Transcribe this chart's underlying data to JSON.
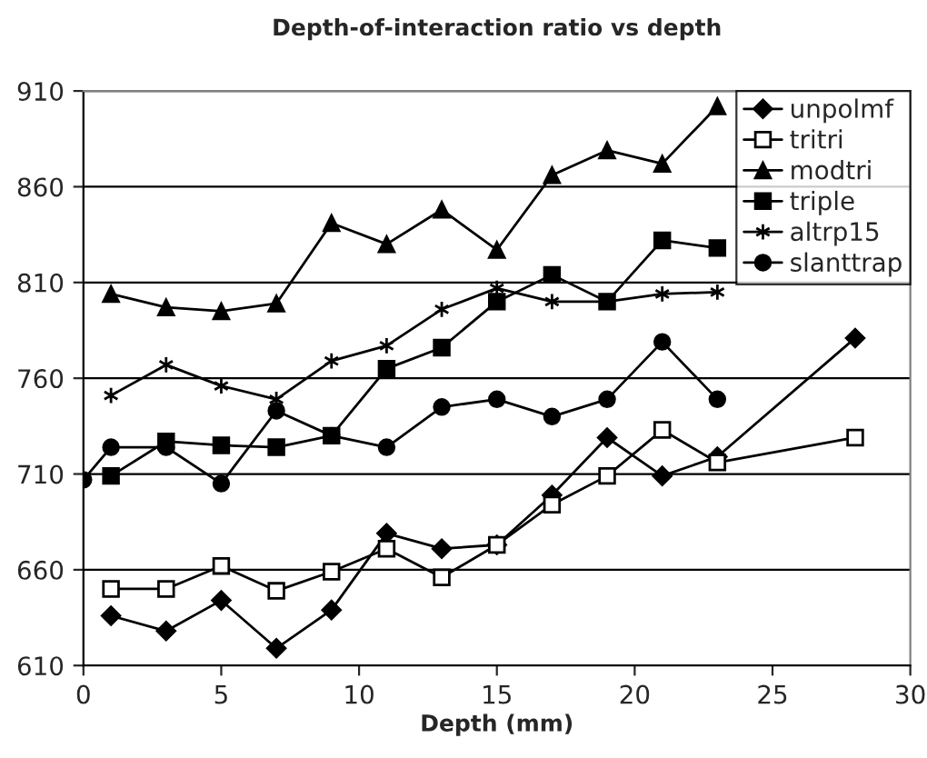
{
  "chart_data": {
    "type": "line",
    "title": "Depth-of-interaction ratio vs depth",
    "xlabel": "Depth (mm)",
    "xlim": [
      0,
      30
    ],
    "xticks": [
      0,
      5,
      10,
      15,
      20,
      25,
      30
    ],
    "ylim": [
      610,
      910
    ],
    "yticks": [
      610,
      660,
      710,
      760,
      810,
      860,
      910
    ],
    "grid": "y",
    "legend": "top right",
    "line_style": "solid",
    "series": [
      {
        "name": "unpolmf",
        "color": "#000000",
        "marker": "diamond",
        "x": [
          1,
          3,
          5,
          7,
          9,
          11,
          13,
          15,
          17,
          19,
          21,
          23,
          28
        ],
        "values": [
          636,
          628,
          644,
          619,
          639,
          679,
          671,
          673,
          699,
          729,
          709,
          719,
          781
        ]
      },
      {
        "name": "tritri",
        "color": "#000000",
        "marker": "square",
        "x": [
          1,
          3,
          5,
          7,
          9,
          11,
          13,
          15,
          17,
          19,
          21,
          23,
          28
        ],
        "values": [
          650,
          650,
          662,
          649,
          659,
          671,
          656,
          673,
          694,
          709,
          733,
          716,
          729
        ]
      },
      {
        "name": "modtri",
        "color": "#000000",
        "marker": "triangle",
        "x": [
          1,
          3,
          5,
          7,
          9,
          11,
          13,
          15,
          17,
          19,
          21,
          23
        ],
        "values": [
          804,
          797,
          795,
          799,
          841,
          830,
          848,
          827,
          866,
          879,
          872,
          902
        ]
      },
      {
        "name": "triple",
        "color": "#000000",
        "marker": "square",
        "x": [
          1,
          3,
          5,
          7,
          9,
          11,
          13,
          15,
          17,
          19,
          21,
          23
        ],
        "values": [
          709,
          727,
          725,
          724,
          730,
          765,
          776,
          800,
          814,
          800,
          832,
          828
        ]
      },
      {
        "name": "altrp15",
        "color": "#000000",
        "marker": "cross",
        "x": [
          1,
          3,
          5,
          7,
          9,
          11,
          13,
          15,
          17,
          19,
          21,
          23
        ],
        "values": [
          751,
          767,
          756,
          749,
          769,
          777,
          796,
          807,
          800,
          800,
          804,
          805
        ]
      },
      {
        "name": "slanttrap",
        "color": "#000000",
        "marker": "circle",
        "x": [
          0,
          1,
          3,
          5,
          7,
          9,
          11,
          13,
          15,
          17,
          19,
          21,
          23
        ],
        "values": [
          707,
          724,
          724,
          705,
          743,
          730,
          724,
          745,
          749,
          740,
          749,
          779,
          749
        ]
      }
    ]
  }
}
